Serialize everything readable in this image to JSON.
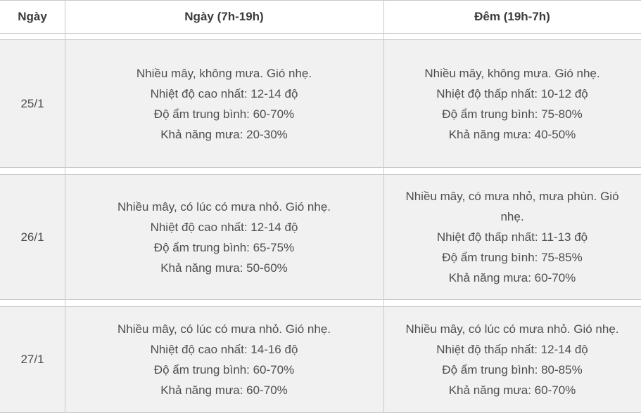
{
  "chart_data": {
    "type": "table",
    "columns": [
      "Ngày",
      "Ngày (7h-19h)",
      "Đêm (19h-7h)"
    ],
    "rows": [
      {
        "date": "25/1",
        "day": [
          "Nhiều mây, không mưa. Gió nhẹ.",
          "Nhiệt độ cao nhất: 12-14 độ",
          "Độ ẩm trung bình: 60-70%",
          "Khả năng mưa: 20-30%"
        ],
        "night": [
          "Nhiều mây, không mưa. Gió nhẹ.",
          "Nhiệt độ thấp nhất: 10-12 độ",
          "Độ ẩm trung bình: 75-80%",
          "Khả năng mưa: 40-50%"
        ]
      },
      {
        "date": "26/1",
        "day": [
          "Nhiều mây, có lúc có mưa nhỏ. Gió nhẹ.",
          "Nhiệt độ cao nhất: 12-14 độ",
          "Độ ẩm trung bình: 65-75%",
          "Khả năng mưa: 50-60%"
        ],
        "night": [
          "Nhiều mây, có mưa nhỏ, mưa phùn. Gió nhẹ.",
          "Nhiệt độ thấp nhất: 11-13 độ",
          "Độ ẩm trung bình: 75-85%",
          "Khả năng mưa: 60-70%"
        ]
      },
      {
        "date": "27/1",
        "day": [
          "Nhiều mây, có lúc có mưa nhỏ. Gió nhẹ.",
          "Nhiệt độ cao nhất: 14-16 độ",
          "Độ ẩm trung bình: 60-70%",
          "Khả năng mưa: 60-70%"
        ],
        "night": [
          "Nhiều mây, có lúc có mưa nhỏ. Gió nhẹ.",
          "Nhiệt độ thấp nhất: 12-14 độ",
          "Độ ẩm trung bình: 80-85%",
          "Khả năng mưa: 60-70%"
        ]
      }
    ]
  },
  "colors": {
    "header_background": "#ffffff",
    "row_background": "#f1f1f1",
    "border": "#c9c9c9",
    "header_text": "#3b3b3b",
    "body_text": "#4e4e4e"
  }
}
